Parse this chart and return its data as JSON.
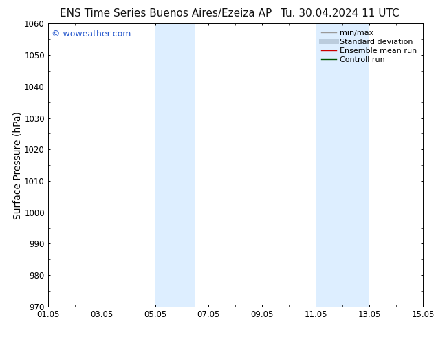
{
  "title_left": "ENS Time Series Buenos Aires/Ezeiza AP",
  "title_right": "Tu. 30.04.2024 11 UTC",
  "ylabel": "Surface Pressure (hPa)",
  "ylim": [
    970,
    1060
  ],
  "yticks": [
    970,
    980,
    990,
    1000,
    1010,
    1020,
    1030,
    1040,
    1050,
    1060
  ],
  "xlim_start": 0,
  "xlim_end": 14,
  "xtick_labels": [
    "01.05",
    "03.05",
    "05.05",
    "07.05",
    "09.05",
    "11.05",
    "13.05",
    "15.05"
  ],
  "xtick_positions": [
    0,
    2,
    4,
    6,
    8,
    10,
    12,
    14
  ],
  "shaded_regions": [
    {
      "x_start": 4,
      "x_end": 5.5,
      "color": "#ddeeff"
    },
    {
      "x_start": 10,
      "x_end": 12,
      "color": "#ddeeff"
    }
  ],
  "watermark_text": "© woweather.com",
  "watermark_color": "#2255cc",
  "background_color": "#ffffff",
  "plot_bg_color": "#ffffff",
  "legend_items": [
    {
      "label": "min/max",
      "color": "#999999",
      "lw": 1.0
    },
    {
      "label": "Standard deviation",
      "color": "#bbccdd",
      "lw": 5
    },
    {
      "label": "Ensemble mean run",
      "color": "#cc0000",
      "lw": 1.0
    },
    {
      "label": "Controll run",
      "color": "#005500",
      "lw": 1.0
    }
  ],
  "title_fontsize": 11,
  "axis_label_fontsize": 10,
  "tick_fontsize": 8.5,
  "legend_fontsize": 8,
  "watermark_fontsize": 9
}
